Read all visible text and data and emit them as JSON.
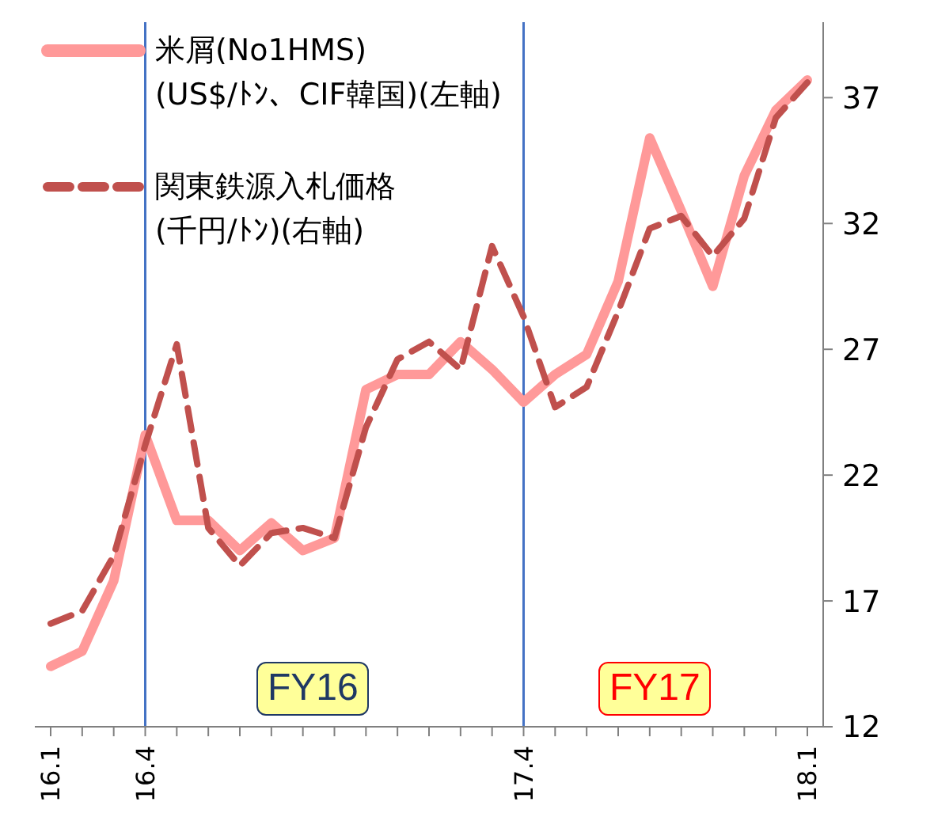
{
  "chart_data": {
    "type": "line",
    "categories": [
      "16.1",
      null,
      null,
      "16.4",
      null,
      null,
      null,
      null,
      null,
      null,
      null,
      null,
      null,
      null,
      null,
      "17.4",
      null,
      null,
      null,
      null,
      null,
      null,
      null,
      null,
      "18.1"
    ],
    "series": [
      {
        "name": "米屑(No1HMS)\n(US$/ﾄﾝ、CIF韓国)(左軸)",
        "color": "#ff9999",
        "line_style": "solid",
        "axis": "y2",
        "values": [
          14.4,
          15.0,
          17.8,
          23.6,
          20.2,
          20.2,
          19.0,
          20.1,
          19.0,
          19.5,
          25.4,
          26.0,
          26.0,
          27.3,
          26.2,
          24.9,
          26.0,
          26.8,
          29.7,
          35.4,
          32.5,
          29.5,
          33.9,
          36.5,
          37.7
        ]
      },
      {
        "name": "関東鉄源入札価格\n(千円/ﾄﾝ)(右軸)",
        "color": "#c0504d",
        "line_style": "dashed",
        "axis": "y2",
        "values": [
          16.1,
          16.6,
          18.8,
          23.2,
          27.2,
          19.9,
          18.4,
          19.7,
          19.9,
          19.5,
          23.9,
          26.6,
          27.3,
          26.2,
          31.1,
          28.3,
          24.7,
          25.5,
          28.5,
          31.8,
          32.3,
          30.7,
          32.2,
          36.2,
          37.6
        ]
      }
    ],
    "y2lim": [
      12,
      40
    ],
    "y2ticks": [
      12,
      17,
      22,
      27,
      32,
      37
    ],
    "ref_lines": [
      {
        "axis": "x",
        "value": "16.4",
        "color": "#4472c4"
      },
      {
        "axis": "x",
        "value": "17.4",
        "color": "#4472c4"
      }
    ],
    "annotations": [
      "FY16",
      "FY17"
    ],
    "legend": "top left",
    "marker": "none"
  }
}
